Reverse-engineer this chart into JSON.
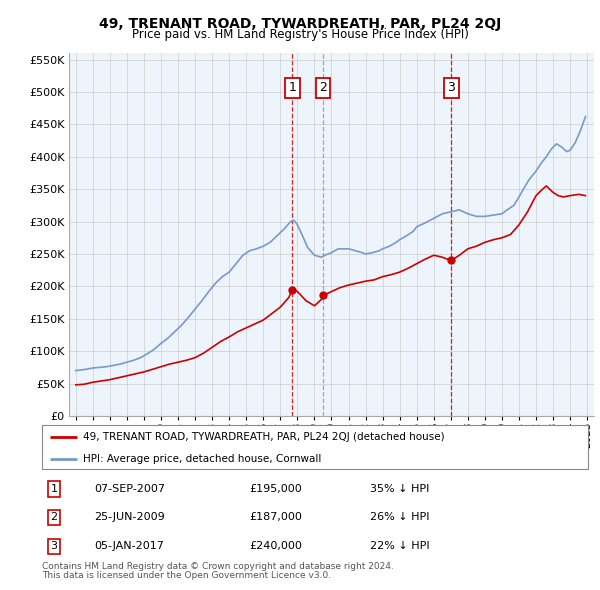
{
  "title": "49, TRENANT ROAD, TYWARDREATH, PAR, PL24 2QJ",
  "subtitle": "Price paid vs. HM Land Registry's House Price Index (HPI)",
  "legend_line1": "49, TRENANT ROAD, TYWARDREATH, PAR, PL24 2QJ (detached house)",
  "legend_line2": "HPI: Average price, detached house, Cornwall",
  "footnote1": "Contains HM Land Registry data © Crown copyright and database right 2024.",
  "footnote2": "This data is licensed under the Open Government Licence v3.0.",
  "transactions": [
    {
      "num": 1,
      "date": "07-SEP-2007",
      "price": "£195,000",
      "hpi": "35% ↓ HPI",
      "year": 2007.7,
      "value": 195000,
      "vline_style": "--",
      "vline_color": "#cc0000"
    },
    {
      "num": 2,
      "date": "25-JUN-2009",
      "price": "£187,000",
      "hpi": "26% ↓ HPI",
      "year": 2009.5,
      "value": 187000,
      "vline_style": "--",
      "vline_color": "#8899bb"
    },
    {
      "num": 3,
      "date": "05-JAN-2017",
      "price": "£240,000",
      "hpi": "22% ↓ HPI",
      "year": 2017.02,
      "value": 240000,
      "vline_style": "--",
      "vline_color": "#cc0000"
    }
  ],
  "red_color": "#cc0000",
  "blue_color": "#7799cc",
  "grid_color": "#cccccc",
  "box_color": "#cc0000",
  "bg_color": "#eef4fb",
  "ylim": [
    0,
    560000
  ],
  "xlim_start": 1994.6,
  "xlim_end": 2025.4,
  "hpi_years": [
    1995.0,
    1995.3,
    1995.6,
    1996.0,
    1996.4,
    1996.8,
    1997.2,
    1997.6,
    1998.0,
    1998.4,
    1998.8,
    1999.2,
    1999.6,
    2000.0,
    2000.4,
    2000.8,
    2001.2,
    2001.6,
    2002.0,
    2002.4,
    2002.8,
    2003.2,
    2003.6,
    2004.0,
    2004.4,
    2004.8,
    2005.2,
    2005.6,
    2006.0,
    2006.4,
    2006.8,
    2007.2,
    2007.6,
    2007.8,
    2008.0,
    2008.3,
    2008.6,
    2009.0,
    2009.4,
    2009.6,
    2010.0,
    2010.4,
    2010.8,
    2011.0,
    2011.4,
    2011.8,
    2012.0,
    2012.4,
    2012.8,
    2013.0,
    2013.4,
    2013.8,
    2014.0,
    2014.4,
    2014.8,
    2015.0,
    2015.5,
    2016.0,
    2016.5,
    2017.0,
    2017.5,
    2018.0,
    2018.5,
    2019.0,
    2019.5,
    2020.0,
    2020.3,
    2020.7,
    2021.0,
    2021.3,
    2021.6,
    2022.0,
    2022.3,
    2022.6,
    2022.9,
    2023.2,
    2023.5,
    2023.8,
    2024.0,
    2024.3,
    2024.6,
    2024.9
  ],
  "hpi_vals": [
    70000,
    71000,
    72000,
    74000,
    75000,
    76000,
    78000,
    80000,
    83000,
    86000,
    90000,
    96000,
    103000,
    112000,
    120000,
    130000,
    140000,
    152000,
    165000,
    178000,
    192000,
    205000,
    215000,
    222000,
    235000,
    248000,
    255000,
    258000,
    262000,
    268000,
    278000,
    288000,
    300000,
    302000,
    295000,
    278000,
    260000,
    248000,
    245000,
    248000,
    252000,
    258000,
    258000,
    258000,
    255000,
    252000,
    250000,
    252000,
    255000,
    258000,
    262000,
    268000,
    272000,
    278000,
    285000,
    292000,
    298000,
    305000,
    312000,
    315000,
    318000,
    312000,
    308000,
    308000,
    310000,
    312000,
    318000,
    325000,
    338000,
    352000,
    365000,
    378000,
    390000,
    400000,
    412000,
    420000,
    415000,
    408000,
    410000,
    422000,
    440000,
    462000
  ],
  "price_years": [
    1995.0,
    1995.5,
    1996.0,
    1996.5,
    1997.0,
    1997.5,
    1998.0,
    1998.5,
    1999.0,
    1999.5,
    2000.0,
    2000.5,
    2001.0,
    2001.5,
    2002.0,
    2002.5,
    2003.0,
    2003.5,
    2004.0,
    2004.5,
    2005.0,
    2005.5,
    2006.0,
    2006.5,
    2007.0,
    2007.5,
    2007.7,
    2008.0,
    2008.5,
    2009.0,
    2009.5,
    2009.6,
    2010.0,
    2010.5,
    2011.0,
    2011.5,
    2012.0,
    2012.5,
    2013.0,
    2013.5,
    2014.0,
    2014.5,
    2015.0,
    2015.5,
    2016.0,
    2016.5,
    2017.0,
    2017.02,
    2017.5,
    2018.0,
    2018.5,
    2019.0,
    2019.5,
    2020.0,
    2020.5,
    2021.0,
    2021.5,
    2022.0,
    2022.3,
    2022.6,
    2023.0,
    2023.3,
    2023.6,
    2024.0,
    2024.5,
    2024.9
  ],
  "price_vals": [
    48000,
    49000,
    52000,
    54000,
    56000,
    59000,
    62000,
    65000,
    68000,
    72000,
    76000,
    80000,
    83000,
    86000,
    90000,
    97000,
    106000,
    115000,
    122000,
    130000,
    136000,
    142000,
    148000,
    158000,
    168000,
    183000,
    195000,
    192000,
    178000,
    170000,
    182000,
    187000,
    192000,
    198000,
    202000,
    205000,
    208000,
    210000,
    215000,
    218000,
    222000,
    228000,
    235000,
    242000,
    248000,
    245000,
    240000,
    240000,
    248000,
    258000,
    262000,
    268000,
    272000,
    275000,
    280000,
    295000,
    315000,
    340000,
    348000,
    355000,
    345000,
    340000,
    338000,
    340000,
    342000,
    340000
  ]
}
